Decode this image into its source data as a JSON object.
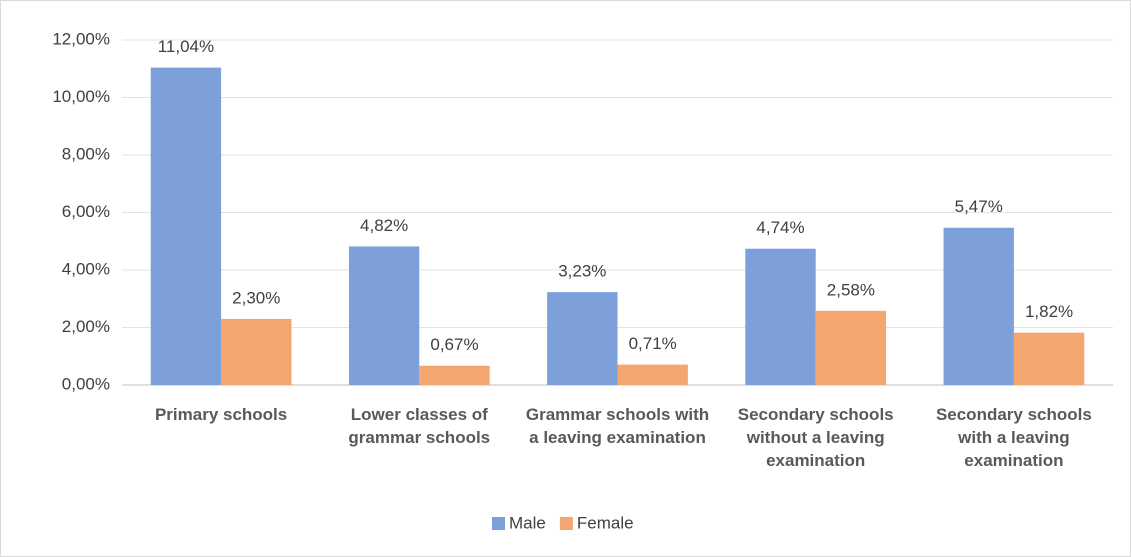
{
  "chart_data": {
    "type": "bar",
    "categories": [
      "Primary schools",
      "Lower classes of grammar schools",
      "Grammar schools with a leaving examination",
      "Secondary schools without a leaving examination",
      "Secondary schools with a leaving examination"
    ],
    "series": [
      {
        "name": "Male",
        "color": "#7da0da",
        "values": [
          11.04,
          4.82,
          3.23,
          4.74,
          5.47
        ],
        "value_labels": [
          "11,04%",
          "4,82%",
          "3,23%",
          "4,74%",
          "5,47%"
        ]
      },
      {
        "name": "Female",
        "color": "#f3a66f",
        "values": [
          2.3,
          0.67,
          0.71,
          2.58,
          1.82
        ],
        "value_labels": [
          "2,30%",
          "0,67%",
          "0,71%",
          "2,58%",
          "1,82%"
        ]
      }
    ],
    "ylim": [
      0,
      12
    ],
    "yticks": [
      {
        "value": 0,
        "label": "0,00%"
      },
      {
        "value": 2,
        "label": "2,00%"
      },
      {
        "value": 4,
        "label": "4,00%"
      },
      {
        "value": 6,
        "label": "6,00%"
      },
      {
        "value": 8,
        "label": "8,00%"
      },
      {
        "value": 10,
        "label": "10,00%"
      },
      {
        "value": 12,
        "label": "12,00%"
      }
    ],
    "grid": true,
    "legend": "bottom"
  }
}
